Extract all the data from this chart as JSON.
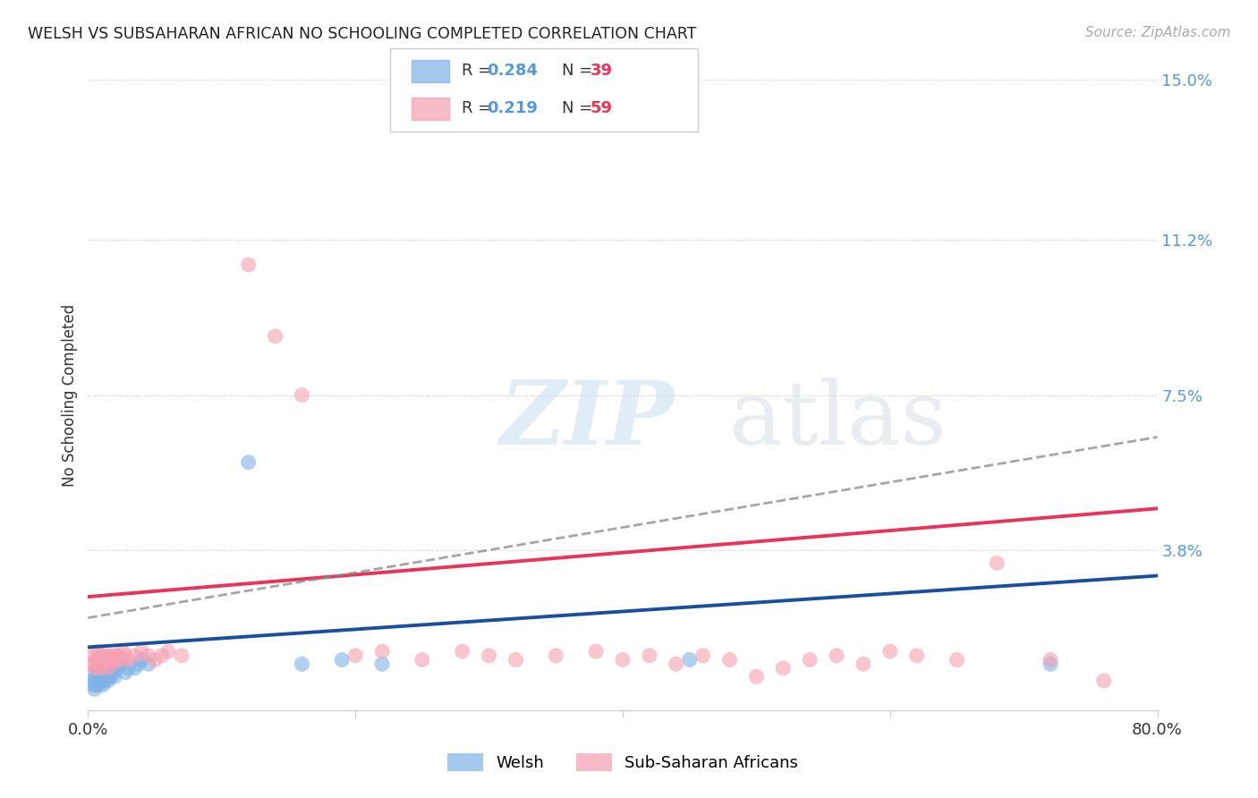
{
  "title": "WELSH VS SUBSAHARAN AFRICAN NO SCHOOLING COMPLETED CORRELATION CHART",
  "source": "Source: ZipAtlas.com",
  "ylabel": "No Schooling Completed",
  "xlim": [
    0.0,
    0.8
  ],
  "ylim": [
    0.0,
    0.15
  ],
  "yticks": [
    0.0,
    0.038,
    0.075,
    0.112,
    0.15
  ],
  "ytick_labels": [
    "",
    "3.8%",
    "7.5%",
    "11.2%",
    "15.0%"
  ],
  "xticks": [
    0.0,
    0.2,
    0.4,
    0.6,
    0.8
  ],
  "xtick_labels": [
    "0.0%",
    "",
    "",
    "",
    "80.0%"
  ],
  "grid_yticks": [
    0.038,
    0.075,
    0.112,
    0.15
  ],
  "legend_welsh_R": "0.284",
  "legend_welsh_N": "39",
  "legend_ssa_R": "0.219",
  "legend_ssa_N": "59",
  "welsh_color": "#7fb3e8",
  "ssa_color": "#f5a0b0",
  "welsh_line_color": "#1a4f9c",
  "ssa_line_color": "#e8335a",
  "welsh_scatter": [
    [
      0.003,
      0.006
    ],
    [
      0.004,
      0.007
    ],
    [
      0.005,
      0.005
    ],
    [
      0.005,
      0.008
    ],
    [
      0.006,
      0.006
    ],
    [
      0.006,
      0.009
    ],
    [
      0.007,
      0.007
    ],
    [
      0.007,
      0.01
    ],
    [
      0.008,
      0.006
    ],
    [
      0.008,
      0.008
    ],
    [
      0.009,
      0.007
    ],
    [
      0.009,
      0.009
    ],
    [
      0.01,
      0.007
    ],
    [
      0.01,
      0.008
    ],
    [
      0.011,
      0.006
    ],
    [
      0.011,
      0.009
    ],
    [
      0.012,
      0.007
    ],
    [
      0.013,
      0.01
    ],
    [
      0.014,
      0.008
    ],
    [
      0.015,
      0.007
    ],
    [
      0.016,
      0.009
    ],
    [
      0.017,
      0.008
    ],
    [
      0.018,
      0.01
    ],
    [
      0.019,
      0.009
    ],
    [
      0.02,
      0.008
    ],
    [
      0.022,
      0.01
    ],
    [
      0.025,
      0.011
    ],
    [
      0.028,
      0.009
    ],
    [
      0.03,
      0.01
    ],
    [
      0.035,
      0.01
    ],
    [
      0.038,
      0.011
    ],
    [
      0.04,
      0.012
    ],
    [
      0.045,
      0.011
    ],
    [
      0.12,
      0.059
    ],
    [
      0.16,
      0.011
    ],
    [
      0.19,
      0.012
    ],
    [
      0.22,
      0.011
    ],
    [
      0.45,
      0.012
    ],
    [
      0.72,
      0.011
    ]
  ],
  "ssa_scatter": [
    [
      0.003,
      0.011
    ],
    [
      0.004,
      0.013
    ],
    [
      0.005,
      0.01
    ],
    [
      0.006,
      0.012
    ],
    [
      0.007,
      0.011
    ],
    [
      0.007,
      0.014
    ],
    [
      0.008,
      0.012
    ],
    [
      0.009,
      0.01
    ],
    [
      0.01,
      0.011
    ],
    [
      0.01,
      0.013
    ],
    [
      0.011,
      0.012
    ],
    [
      0.012,
      0.011
    ],
    [
      0.013,
      0.013
    ],
    [
      0.014,
      0.012
    ],
    [
      0.015,
      0.01
    ],
    [
      0.016,
      0.013
    ],
    [
      0.017,
      0.012
    ],
    [
      0.018,
      0.011
    ],
    [
      0.019,
      0.013
    ],
    [
      0.02,
      0.012
    ],
    [
      0.022,
      0.013
    ],
    [
      0.024,
      0.012
    ],
    [
      0.026,
      0.014
    ],
    [
      0.028,
      0.013
    ],
    [
      0.03,
      0.012
    ],
    [
      0.035,
      0.013
    ],
    [
      0.04,
      0.014
    ],
    [
      0.045,
      0.013
    ],
    [
      0.05,
      0.012
    ],
    [
      0.055,
      0.013
    ],
    [
      0.06,
      0.014
    ],
    [
      0.07,
      0.013
    ],
    [
      0.12,
      0.106
    ],
    [
      0.14,
      0.089
    ],
    [
      0.16,
      0.075
    ],
    [
      0.2,
      0.013
    ],
    [
      0.22,
      0.014
    ],
    [
      0.25,
      0.012
    ],
    [
      0.28,
      0.014
    ],
    [
      0.3,
      0.013
    ],
    [
      0.32,
      0.012
    ],
    [
      0.35,
      0.013
    ],
    [
      0.38,
      0.014
    ],
    [
      0.4,
      0.012
    ],
    [
      0.42,
      0.013
    ],
    [
      0.44,
      0.011
    ],
    [
      0.46,
      0.013
    ],
    [
      0.48,
      0.012
    ],
    [
      0.5,
      0.008
    ],
    [
      0.52,
      0.01
    ],
    [
      0.54,
      0.012
    ],
    [
      0.56,
      0.013
    ],
    [
      0.58,
      0.011
    ],
    [
      0.6,
      0.014
    ],
    [
      0.62,
      0.013
    ],
    [
      0.65,
      0.012
    ],
    [
      0.68,
      0.035
    ],
    [
      0.72,
      0.012
    ],
    [
      0.76,
      0.007
    ]
  ],
  "watermark_zip": "ZIP",
  "watermark_atlas": "atlas",
  "background_color": "#ffffff"
}
